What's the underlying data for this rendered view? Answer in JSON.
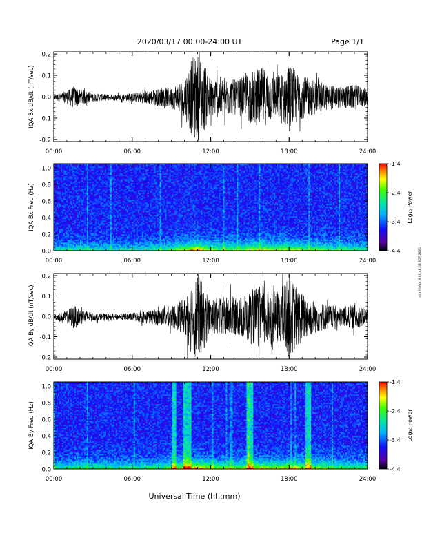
{
  "header": {
    "title": "2020/03/17  00:00-24:00 UT",
    "page": "Page 1/1"
  },
  "footer": {
    "xlabel": "Universal Time (hh:mm)"
  },
  "side_note": "mth Fri Apr 3 09:48:03 EDT 2020",
  "colorbar": {
    "label": "Log₁₀ Power",
    "ticks": [
      "-1.4",
      "-2.4",
      "-3.4",
      "-4.4"
    ],
    "range": [
      -4.4,
      -1.4
    ]
  },
  "time_ticks": [
    "00:00",
    "06:00",
    "12:00",
    "18:00",
    "24:00"
  ],
  "chart_data": [
    {
      "type": "line",
      "id": "bx-dbdt",
      "ylabel": "IQA Bx dB/dt (nT/sec)",
      "xlim": [
        0,
        24
      ],
      "ylim": [
        -0.21,
        0.21
      ],
      "ytick_labels": [
        "0.2",
        "0.1",
        "0.0",
        "-0.1",
        "-0.2"
      ],
      "ytick_values": [
        0.2,
        0.1,
        0.0,
        -0.1,
        -0.2
      ],
      "envelope": {
        "hours": [
          0,
          1,
          1.5,
          2,
          3,
          4,
          5,
          6,
          7,
          8,
          9,
          10,
          10.5,
          11,
          11.5,
          12,
          13,
          14,
          15,
          16,
          17,
          18,
          19,
          20,
          21,
          22,
          23,
          24
        ],
        "amplitude": [
          0.012,
          0.03,
          0.05,
          0.04,
          0.02,
          0.015,
          0.015,
          0.02,
          0.03,
          0.04,
          0.05,
          0.09,
          0.18,
          0.21,
          0.16,
          0.09,
          0.1,
          0.08,
          0.12,
          0.14,
          0.1,
          0.16,
          0.1,
          0.08,
          0.06,
          0.05,
          0.06,
          0.04
        ]
      }
    },
    {
      "type": "heatmap",
      "id": "bx-freq",
      "ylabel": "IQA Bx Freq (Hz)",
      "xlim": [
        0,
        24
      ],
      "ylim": [
        0,
        1.05
      ],
      "ytick_labels": [
        "1.0",
        "0.8",
        "0.6",
        "0.4",
        "0.2",
        "0.0"
      ],
      "ytick_values": [
        1.0,
        0.8,
        0.6,
        0.4,
        0.2,
        0.0
      ],
      "activity_hours": [
        0,
        2,
        4,
        6,
        8,
        9,
        10,
        11,
        12,
        14,
        15,
        16,
        17,
        18,
        20,
        22,
        24
      ],
      "activity_level": [
        0.1,
        0.15,
        0.1,
        0.1,
        0.15,
        0.25,
        0.5,
        0.75,
        0.4,
        0.35,
        0.45,
        0.5,
        0.45,
        0.5,
        0.35,
        0.25,
        0.2
      ],
      "bursts": []
    },
    {
      "type": "line",
      "id": "by-dbdt",
      "ylabel": "IQA By dB/dt (nT/sec)",
      "xlim": [
        0,
        24
      ],
      "ylim": [
        -0.21,
        0.21
      ],
      "ytick_labels": [
        "0.2",
        "0.1",
        "0.0",
        "-0.1",
        "-0.2"
      ],
      "ytick_values": [
        0.2,
        0.1,
        0.0,
        -0.1,
        -0.2
      ],
      "envelope": {
        "hours": [
          0,
          1,
          1.5,
          2,
          3,
          4,
          5,
          6,
          7,
          8,
          9,
          10,
          10.5,
          11,
          11.5,
          12,
          13,
          14,
          15,
          16,
          17,
          18,
          19,
          20,
          21,
          22,
          23,
          24
        ],
        "amplitude": [
          0.012,
          0.03,
          0.06,
          0.04,
          0.02,
          0.015,
          0.015,
          0.02,
          0.03,
          0.04,
          0.05,
          0.09,
          0.18,
          0.21,
          0.16,
          0.08,
          0.1,
          0.09,
          0.13,
          0.16,
          0.12,
          0.2,
          0.12,
          0.08,
          0.06,
          0.05,
          0.06,
          0.04
        ]
      }
    },
    {
      "type": "heatmap",
      "id": "by-freq",
      "ylabel": "IQA By Freq (Hz)",
      "xlim": [
        0,
        24
      ],
      "ylim": [
        0,
        1.05
      ],
      "ytick_labels": [
        "1.0",
        "0.8",
        "0.6",
        "0.4",
        "0.2",
        "0.0"
      ],
      "ytick_values": [
        1.0,
        0.8,
        0.6,
        0.4,
        0.2,
        0.0
      ],
      "activity_hours": [
        0,
        2,
        4,
        6,
        8,
        9,
        10,
        11,
        12,
        14,
        15,
        16,
        17,
        18,
        20,
        22,
        24
      ],
      "activity_level": [
        0.15,
        0.25,
        0.2,
        0.2,
        0.25,
        0.35,
        0.6,
        0.75,
        0.45,
        0.4,
        0.5,
        0.55,
        0.5,
        0.55,
        0.45,
        0.3,
        0.25
      ],
      "bursts": [
        [
          9.1,
          9.4
        ],
        [
          9.9,
          10.5
        ],
        [
          14.7,
          15.3
        ],
        [
          19.3,
          19.7
        ]
      ]
    }
  ]
}
